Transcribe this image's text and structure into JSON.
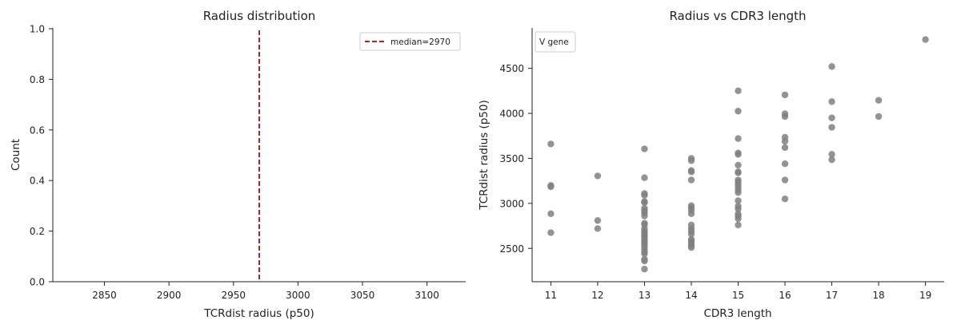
{
  "chart_data": [
    {
      "type": "histogram",
      "title": "Radius distribution",
      "xlabel": "TCRdist radius (p50)",
      "ylabel": "Count",
      "xlim": [
        2810,
        3130
      ],
      "ylim": [
        0,
        1
      ],
      "xticks": [
        2850,
        2900,
        2950,
        3000,
        3050,
        3100
      ],
      "yticks": [
        0.0,
        0.2,
        0.4,
        0.6,
        0.8,
        1.0
      ],
      "ytick_labels": [
        "0.0",
        "0.2",
        "0.4",
        "0.6",
        "0.8",
        "1.0"
      ],
      "bins": [],
      "median": 2970,
      "median_color": "#b2262a",
      "legend": {
        "label": "median=2970",
        "placement": "upper right"
      },
      "grid": false
    },
    {
      "type": "scatter",
      "title": "Radius vs CDR3 length",
      "xlabel": "CDR3 length",
      "ylabel": "TCRdist radius (p50)",
      "xlim": [
        10.6,
        19.4
      ],
      "ylim": [
        2130,
        4940
      ],
      "xticks": [
        11,
        12,
        13,
        14,
        15,
        16,
        17,
        18,
        19
      ],
      "yticks": [
        2500,
        3000,
        3500,
        4000,
        4500
      ],
      "point_color": "#808080",
      "legend": {
        "title": "V gene",
        "placement": "upper left"
      },
      "grid": false,
      "points": [
        [
          11,
          3660
        ],
        [
          11,
          3200
        ],
        [
          11,
          3185
        ],
        [
          11,
          2885
        ],
        [
          11,
          2675
        ],
        [
          12,
          3305
        ],
        [
          12,
          2810
        ],
        [
          12,
          2720
        ],
        [
          13,
          3605
        ],
        [
          13,
          3285
        ],
        [
          13,
          3110
        ],
        [
          13,
          3090
        ],
        [
          13,
          3020
        ],
        [
          13,
          3010
        ],
        [
          13,
          2945
        ],
        [
          13,
          2920
        ],
        [
          13,
          2895
        ],
        [
          13,
          2860
        ],
        [
          13,
          2780
        ],
        [
          13,
          2765
        ],
        [
          13,
          2720
        ],
        [
          13,
          2690
        ],
        [
          13,
          2675
        ],
        [
          13,
          2650
        ],
        [
          13,
          2635
        ],
        [
          13,
          2610
        ],
        [
          13,
          2590
        ],
        [
          13,
          2570
        ],
        [
          13,
          2550
        ],
        [
          13,
          2520
        ],
        [
          13,
          2490
        ],
        [
          13,
          2460
        ],
        [
          13,
          2440
        ],
        [
          13,
          2380
        ],
        [
          13,
          2360
        ],
        [
          13,
          2270
        ],
        [
          14,
          3500
        ],
        [
          14,
          3475
        ],
        [
          14,
          3365
        ],
        [
          14,
          3350
        ],
        [
          14,
          3260
        ],
        [
          14,
          2975
        ],
        [
          14,
          2950
        ],
        [
          14,
          2925
        ],
        [
          14,
          2885
        ],
        [
          14,
          2760
        ],
        [
          14,
          2720
        ],
        [
          14,
          2690
        ],
        [
          14,
          2660
        ],
        [
          14,
          2600
        ],
        [
          14,
          2580
        ],
        [
          14,
          2555
        ],
        [
          14,
          2530
        ],
        [
          14,
          2510
        ],
        [
          15,
          4250
        ],
        [
          15,
          4025
        ],
        [
          15,
          3720
        ],
        [
          15,
          3560
        ],
        [
          15,
          3545
        ],
        [
          15,
          3425
        ],
        [
          15,
          3350
        ],
        [
          15,
          3340
        ],
        [
          15,
          3260
        ],
        [
          15,
          3240
        ],
        [
          15,
          3210
        ],
        [
          15,
          3180
        ],
        [
          15,
          3150
        ],
        [
          15,
          3120
        ],
        [
          15,
          3030
        ],
        [
          15,
          2970
        ],
        [
          15,
          2940
        ],
        [
          15,
          2885
        ],
        [
          15,
          2860
        ],
        [
          15,
          2830
        ],
        [
          15,
          2760
        ],
        [
          16,
          4205
        ],
        [
          16,
          3995
        ],
        [
          16,
          3965
        ],
        [
          16,
          3735
        ],
        [
          16,
          3690
        ],
        [
          16,
          3620
        ],
        [
          16,
          3440
        ],
        [
          16,
          3260
        ],
        [
          16,
          3050
        ],
        [
          17,
          4520
        ],
        [
          17,
          4130
        ],
        [
          17,
          3950
        ],
        [
          17,
          3845
        ],
        [
          17,
          3545
        ],
        [
          17,
          3485
        ],
        [
          18,
          4145
        ],
        [
          18,
          3965
        ],
        [
          19,
          4820
        ]
      ]
    }
  ]
}
